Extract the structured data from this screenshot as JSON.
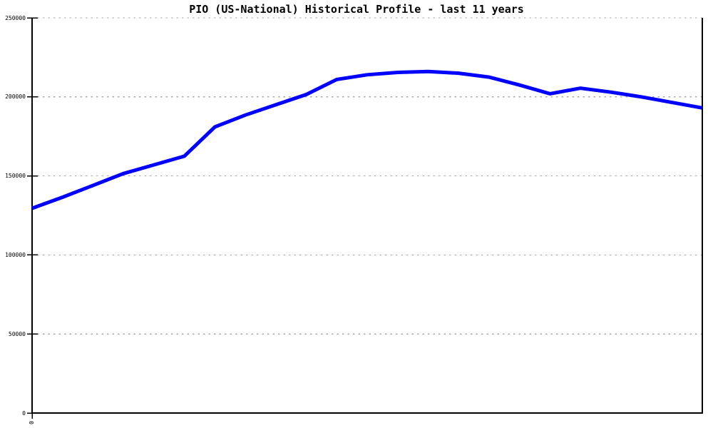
{
  "title": "PIO (US-National) Historical Profile - last 11 years",
  "colors": {
    "line": "#0000ff",
    "grid": "#aaaaaa",
    "axis": "#000000",
    "background": "#ffffff",
    "text": "#000000"
  },
  "chart_data": {
    "type": "line",
    "title": "PIO (US-National) Historical Profile - last 11 years",
    "xlabel": "",
    "ylabel": "",
    "ylim": [
      0,
      250000
    ],
    "y_ticks": [
      0,
      50000,
      100000,
      150000,
      200000,
      250000
    ],
    "x_tick_labels": [
      "0"
    ],
    "grid": "horizontal-dotted",
    "legend_position": "none",
    "x_years": [
      0,
      0.5,
      1,
      1.5,
      2,
      2.5,
      3,
      3.5,
      4,
      4.5,
      5,
      5.5,
      6,
      6.5,
      7,
      7.5,
      8,
      8.5,
      9,
      9.5,
      10,
      10.5,
      11
    ],
    "series": [
      {
        "name": "PIO (US-National)",
        "color": "#0000ff",
        "values": [
          129500,
          136500,
          144000,
          151500,
          157000,
          162500,
          181000,
          188500,
          195000,
          201500,
          211000,
          214000,
          215500,
          216000,
          215000,
          212500,
          207500,
          202000,
          205500,
          203000,
          200000,
          196500,
          193000
        ]
      }
    ]
  }
}
